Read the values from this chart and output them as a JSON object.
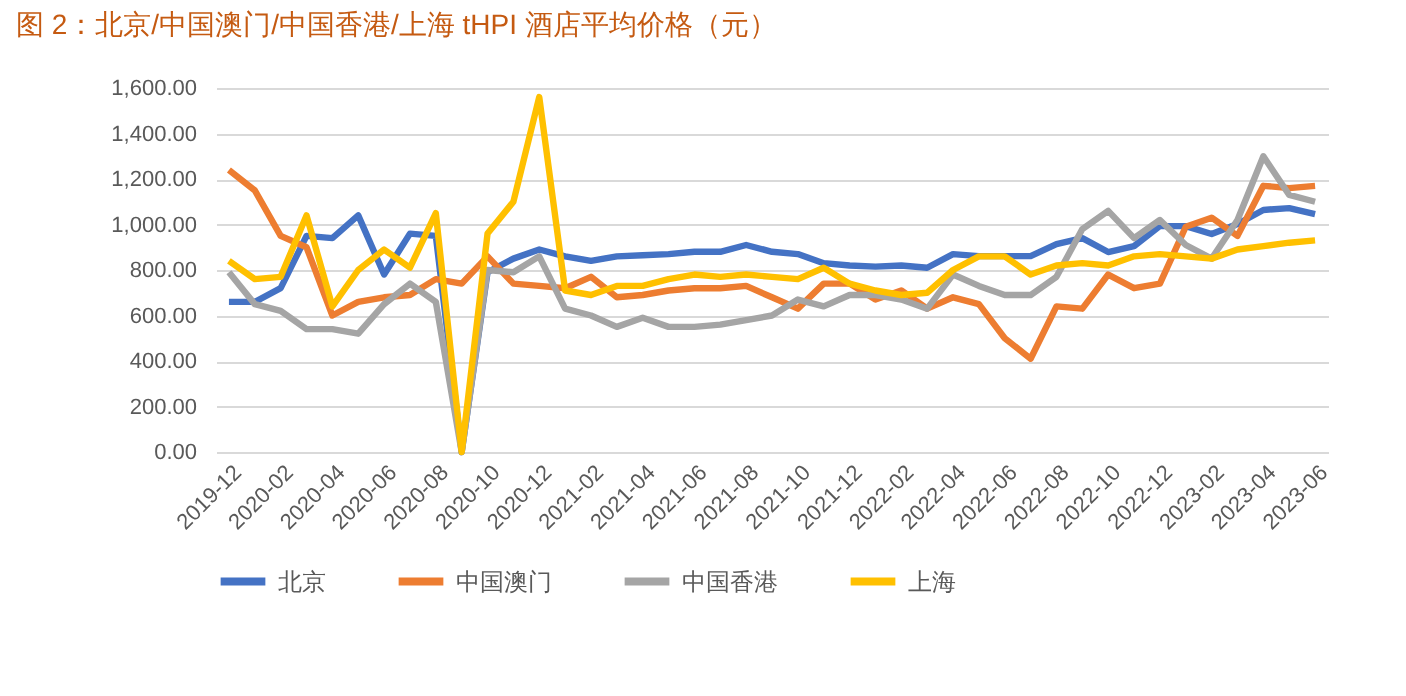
{
  "chart_data": {
    "type": "line",
    "title": "图 2：北京/中国澳门/中国香港/上海 tHPI 酒店平均价格（元）",
    "categories": [
      "2019-12",
      null,
      "2020-02",
      null,
      "2020-04",
      null,
      "2020-06",
      null,
      "2020-08",
      null,
      "2020-10",
      null,
      "2020-12",
      null,
      "2021-02",
      null,
      "2021-04",
      null,
      "2021-06",
      null,
      "2021-08",
      null,
      "2021-10",
      null,
      "2021-12",
      null,
      "2022-02",
      null,
      "2022-04",
      null,
      "2022-06",
      null,
      "2022-08",
      null,
      "2022-10",
      null,
      "2022-12",
      null,
      "2023-02",
      null,
      "2023-04",
      null,
      "2023-06"
    ],
    "series": [
      {
        "name": "北京",
        "color": "#4472c4",
        "values": [
          660,
          660,
          720,
          950,
          940,
          1040,
          780,
          960,
          950,
          0,
          790,
          850,
          890,
          860,
          840,
          860,
          865,
          870,
          880,
          880,
          910,
          880,
          870,
          830,
          820,
          815,
          820,
          810,
          870,
          861,
          861,
          861,
          914,
          940,
          879,
          905,
          993,
          993,
          958,
          1002,
          1064,
          1072,
          1046
        ]
      },
      {
        "name": "中国澳门",
        "color": "#ed7d31",
        "values": [
          1240,
          1150,
          950,
          900,
          600,
          660,
          680,
          690,
          760,
          740,
          860,
          740,
          730,
          720,
          770,
          680,
          690,
          710,
          720,
          720,
          730,
          680,
          630,
          740,
          740,
          670,
          710,
          630,
          680,
          650,
          500,
          410,
          640,
          630,
          780,
          720,
          740,
          990,
          1030,
          950,
          1170,
          1160,
          1170
        ]
      },
      {
        "name": "中国香港",
        "color": "#a5a5a5",
        "values": [
          790,
          650,
          620,
          540,
          540,
          520,
          650,
          740,
          660,
          0,
          800,
          790,
          860,
          630,
          600,
          550,
          590,
          550,
          550,
          560,
          580,
          600,
          670,
          640,
          690,
          690,
          670,
          630,
          780,
          730,
          690,
          690,
          770,
          980,
          1060,
          940,
          1020,
          910,
          850,
          1020,
          1300,
          1130,
          1100
        ]
      },
      {
        "name": "上海",
        "color": "#ffc000",
        "values": [
          840,
          760,
          770,
          1040,
          640,
          800,
          890,
          810,
          1050,
          0,
          960,
          1100,
          1560,
          710,
          690,
          730,
          730,
          760,
          780,
          770,
          780,
          770,
          760,
          810,
          740,
          710,
          690,
          700,
          800,
          860,
          860,
          780,
          820,
          830,
          820,
          860,
          870,
          860,
          850,
          890,
          905,
          920,
          930
        ]
      }
    ],
    "ylim": [
      0,
      1600
    ],
    "yticks": [
      {
        "value": 0,
        "label": "0.00"
      },
      {
        "value": 200,
        "label": "200.00"
      },
      {
        "value": 400,
        "label": "400.00"
      },
      {
        "value": 600,
        "label": "600.00"
      },
      {
        "value": 800,
        "label": "800.00"
      },
      {
        "value": 1000,
        "label": "1,000.00"
      },
      {
        "value": 1200,
        "label": "1,200.00"
      },
      {
        "value": 1400,
        "label": "1,400.00"
      },
      {
        "value": 1600,
        "label": "1,600.00"
      }
    ],
    "grid": "y",
    "legend": "bottom",
    "marker": "none",
    "line_style": "solid"
  }
}
